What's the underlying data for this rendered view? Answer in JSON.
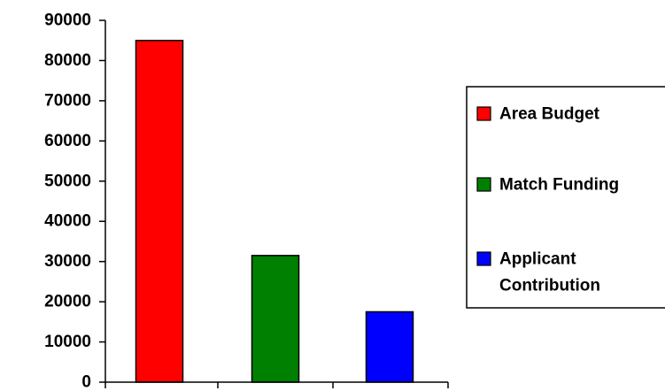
{
  "chart_data": {
    "type": "bar",
    "title": "",
    "xlabel": "",
    "ylabel": "",
    "categories": [
      "Area Budget",
      "Match Funding",
      "Applicant Contribution"
    ],
    "values": [
      85000,
      31500,
      17500
    ],
    "colors": [
      "#ff0000",
      "#008000",
      "#0000ff"
    ],
    "ylim": [
      0,
      90000
    ],
    "yticks": [
      0,
      10000,
      20000,
      30000,
      40000,
      50000,
      60000,
      70000,
      80000,
      90000
    ],
    "ytick_labels": [
      "0",
      "10000",
      "20000",
      "30000",
      "40000",
      "50000",
      "60000",
      "70000",
      "80000",
      "90000"
    ],
    "grid": false,
    "legend": {
      "placement": "right",
      "entries": [
        {
          "lines": [
            "Area Budget"
          ],
          "color": "#ff0000"
        },
        {
          "lines": [
            "Match Funding"
          ],
          "color": "#008000"
        },
        {
          "lines": [
            "Applicant",
            "Contribution"
          ],
          "color": "#0000ff"
        }
      ]
    }
  }
}
